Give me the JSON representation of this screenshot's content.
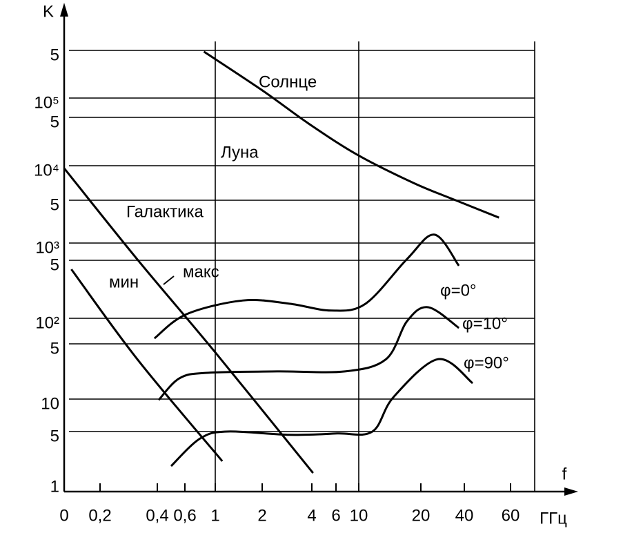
{
  "chart_data": {
    "type": "line",
    "x_label": "f",
    "x_unit": "ГГц",
    "y_label": "K",
    "y_log": true,
    "xticks": [
      0,
      {
        "value": 0.2,
        "label": "0,2"
      },
      {
        "value": 0.4,
        "label": "0,4"
      },
      {
        "value": 0.6,
        "label": "0,6"
      },
      1,
      2,
      4,
      6,
      10,
      20,
      40,
      60
    ],
    "xlim": [
      0,
      60
    ],
    "x_grid_lines": [
      1,
      10
    ],
    "yticks": [
      1,
      5,
      10,
      {
        "value": 50,
        "label": "5"
      },
      {
        "value": 100,
        "label": "10²"
      },
      {
        "value": 500,
        "label": "5"
      },
      {
        "value": 1000,
        "label": "10³"
      },
      {
        "value": 5000,
        "label": "5"
      },
      {
        "value": 10000,
        "label": "10⁴"
      },
      {
        "value": 50000,
        "label": "5"
      },
      {
        "value": 100000,
        "label": "10⁵"
      },
      {
        "value": 500000,
        "label": "5"
      }
    ],
    "ylim": [
      1,
      500000
    ],
    "grid": true,
    "annotations": [
      "Луна",
      "Галактика"
    ],
    "series": [
      {
        "name": "Солнце",
        "color": "#000000",
        "x": [
          0.85,
          2,
          3.9,
          10,
          19,
          36,
          55
        ],
        "values": [
          480000,
          130000,
          40000,
          14000,
          7000,
          5000,
          2600
        ]
      },
      {
        "name": "макс",
        "color": "#000000",
        "x": [
          0,
          0.33,
          1,
          4.1
        ],
        "values": [
          9500,
          520,
          39,
          1.33
        ]
      },
      {
        "name": "мин",
        "color": "#000000",
        "x": [
          0.04,
          0.33,
          1.15
        ],
        "values": [
          390,
          32,
          1.94
        ]
      },
      {
        "name": "φ=0°",
        "color": "#000000",
        "x": [
          0.39,
          0.62,
          1.59,
          3.1,
          5.6,
          11.1,
          17.8,
          26.3,
          37.5
        ],
        "values": [
          58,
          112,
          164,
          150,
          124,
          150,
          530,
          1370,
          430
        ]
      },
      {
        "name": "φ=10°",
        "color": "#000000",
        "x": [
          0.41,
          0.56,
          0.89,
          2.6,
          7.6,
          14.4,
          17.8,
          23.4,
          37.5
        ],
        "values": [
          9.8,
          18.3,
          21.5,
          22.4,
          22.4,
          32,
          93,
          136,
          77
        ]
      },
      {
        "name": "φ=90°",
        "color": "#000000",
        "x": [
          0.5,
          0.8,
          1.26,
          3.1,
          6.2,
          12.2,
          15.6,
          27.9,
          43.6
        ],
        "values": [
          1.66,
          4.0,
          5,
          4.5,
          4.7,
          5,
          10.6,
          32,
          15.9
        ]
      }
    ]
  }
}
